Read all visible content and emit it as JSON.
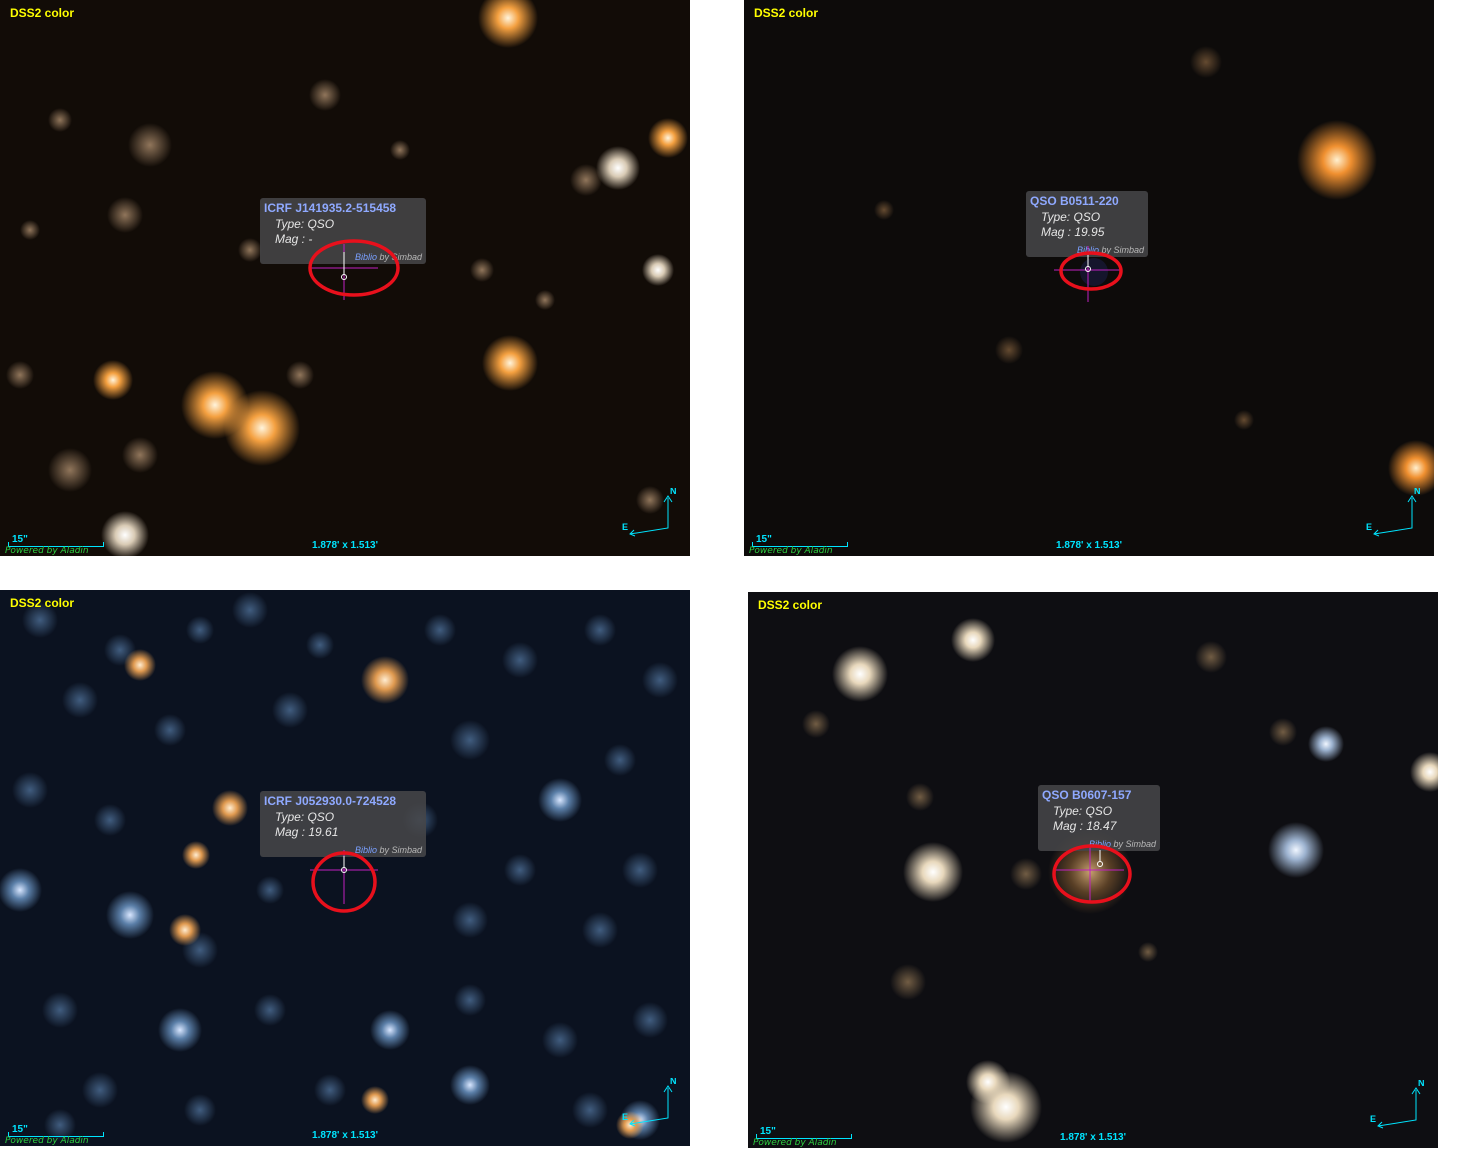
{
  "panels": [
    {
      "survey": "DSS2 color",
      "scale": "15\"",
      "fov": "1.878' x 1.513'",
      "powered_by": "Powered by Aladin",
      "compass_n": "N",
      "compass_e": "E",
      "object": {
        "name": "ICRF J141935.2-515458",
        "type": "Type: QSO",
        "mag": "Mag : -",
        "biblio": "Biblio",
        "by": "by Simbad"
      }
    },
    {
      "survey": "DSS2 color",
      "scale": "15\"",
      "fov": "1.878' x 1.513'",
      "powered_by": "Powered by Aladin",
      "compass_n": "N",
      "compass_e": "E",
      "object": {
        "name": "QSO B0511-220",
        "type": "Type: QSO",
        "mag": "Mag : 19.95",
        "biblio": "Biblio",
        "by": "by Simbad"
      }
    },
    {
      "survey": "DSS2 color",
      "scale": "15\"",
      "fov": "1.878' x 1.513'",
      "powered_by": "Powered by Aladin",
      "compass_n": "N",
      "compass_e": "E",
      "object": {
        "name": "ICRF J052930.0-724528",
        "type": "Type: QSO",
        "mag": "Mag : 19.61",
        "biblio": "Biblio",
        "by": "by Simbad"
      }
    },
    {
      "survey": "DSS2 color",
      "scale": "15\"",
      "fov": "1.878' x 1.513'",
      "powered_by": "Powered by Aladin",
      "compass_n": "N",
      "compass_e": "E",
      "object": {
        "name": "QSO B0607-157",
        "type": "Type: QSO",
        "mag": "Mag : 18.47",
        "biblio": "Biblio",
        "by": "by Simbad"
      }
    }
  ],
  "colors": {
    "survey_label": "#ffff00",
    "overlay_cyan": "#00e5ff",
    "object_name": "#8fa9ff",
    "highlight_ring": "#e8101c",
    "crosshair": "#c020c0"
  }
}
